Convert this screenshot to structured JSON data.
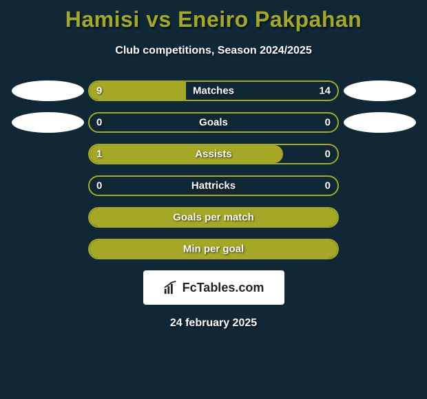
{
  "title": "Hamisi vs Eneiro Pakpahan",
  "subtitle": "Club competitions, Season 2024/2025",
  "colors": {
    "background": "#102736",
    "accent": "#a4a826",
    "text_light": "#ffffff",
    "oval": "#ffffff",
    "brand_bg": "#ffffff",
    "brand_text": "#222222"
  },
  "rows": [
    {
      "label": "Matches",
      "left_value": "9",
      "right_value": "14",
      "left_pct": 39,
      "right_pct": 0,
      "show_left_oval": true,
      "show_right_oval": true
    },
    {
      "label": "Goals",
      "left_value": "0",
      "right_value": "0",
      "left_pct": 0,
      "right_pct": 0,
      "show_left_oval": true,
      "show_right_oval": true
    },
    {
      "label": "Assists",
      "left_value": "1",
      "right_value": "0",
      "left_pct": 0,
      "right_pct": 22,
      "show_left_oval": false,
      "show_right_oval": false,
      "full_fill_minus_right": true
    },
    {
      "label": "Hattricks",
      "left_value": "0",
      "right_value": "0",
      "left_pct": 0,
      "right_pct": 0,
      "show_left_oval": false,
      "show_right_oval": false
    },
    {
      "label": "Goals per match",
      "left_value": "",
      "right_value": "",
      "left_pct": 100,
      "right_pct": 0,
      "show_left_oval": false,
      "show_right_oval": false,
      "full_fill": true
    },
    {
      "label": "Min per goal",
      "left_value": "",
      "right_value": "",
      "left_pct": 100,
      "right_pct": 0,
      "show_left_oval": false,
      "show_right_oval": false,
      "full_fill": true
    }
  ],
  "brand": {
    "text": "FcTables.com"
  },
  "footer_date": "24 february 2025"
}
